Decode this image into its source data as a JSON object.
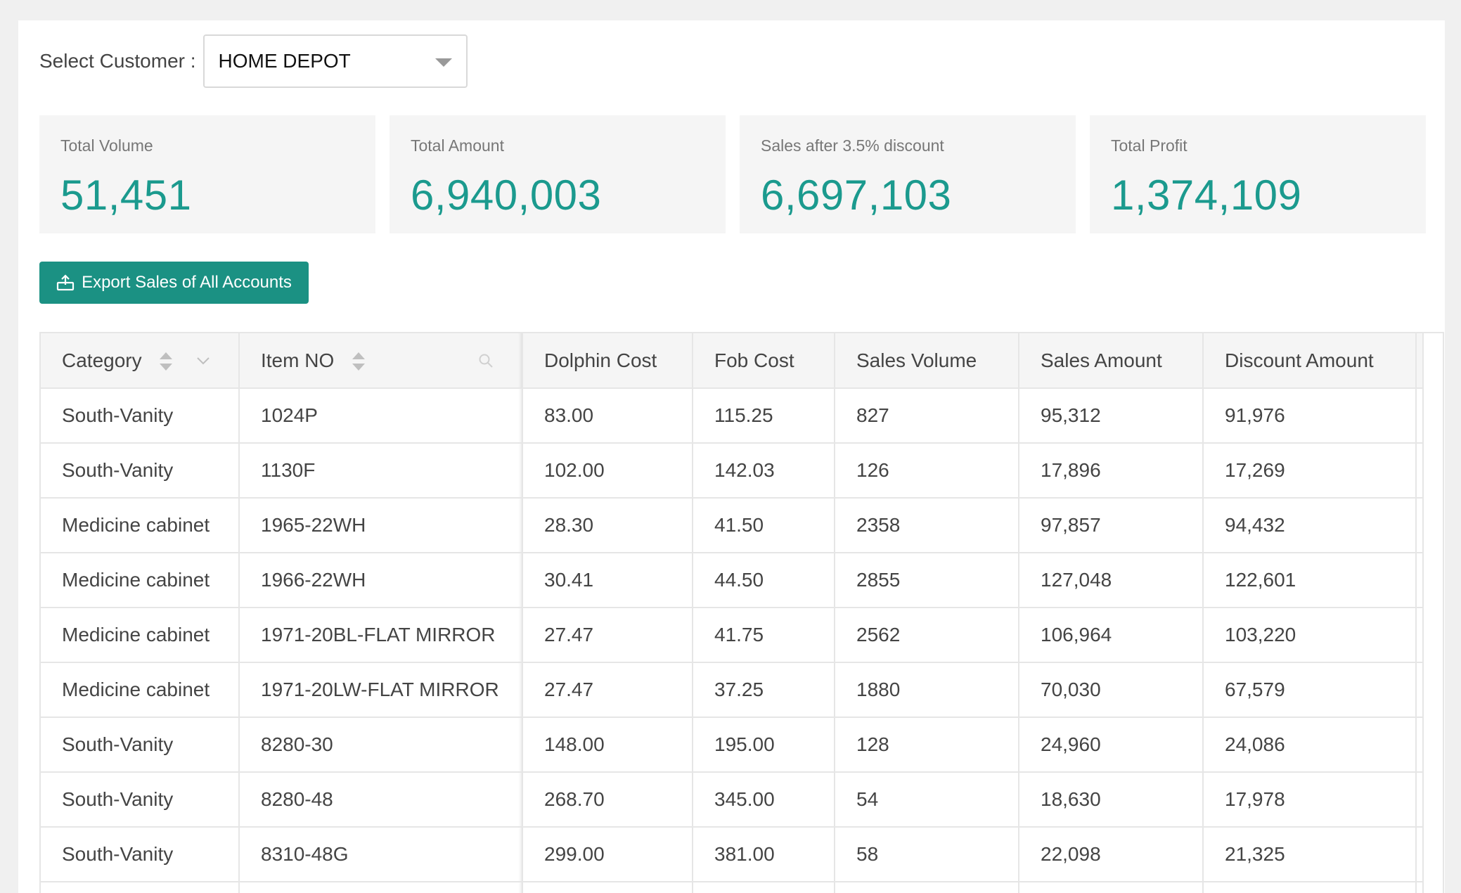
{
  "customer": {
    "label": "Select Customer :",
    "selected": "HOME DEPOT"
  },
  "stats": [
    {
      "title": "Total Volume",
      "value": "51,451"
    },
    {
      "title": "Total Amount",
      "value": "6,940,003"
    },
    {
      "title": "Sales after 3.5% discount",
      "value": "6,697,103"
    },
    {
      "title": "Total Profit",
      "value": "1,374,109"
    }
  ],
  "export_button": {
    "label": "Export Sales of All Accounts"
  },
  "table": {
    "headers": [
      "Category",
      "Item NO",
      "Dolphin Cost",
      "Fob Cost",
      "Sales Volume",
      "Sales Amount",
      "Discount Amount"
    ],
    "rows": [
      [
        "South-Vanity",
        "1024P",
        "83.00",
        "115.25",
        "827",
        "95,312",
        "91,976"
      ],
      [
        "South-Vanity",
        "1130F",
        "102.00",
        "142.03",
        "126",
        "17,896",
        "17,269"
      ],
      [
        "Medicine cabinet",
        "1965-22WH",
        "28.30",
        "41.50",
        "2358",
        "97,857",
        "94,432"
      ],
      [
        "Medicine cabinet",
        "1966-22WH",
        "30.41",
        "44.50",
        "2855",
        "127,048",
        "122,601"
      ],
      [
        "Medicine cabinet",
        "1971-20BL-FLAT MIRROR",
        "27.47",
        "41.75",
        "2562",
        "106,964",
        "103,220"
      ],
      [
        "Medicine cabinet",
        "1971-20LW-FLAT MIRROR",
        "27.47",
        "37.25",
        "1880",
        "70,030",
        "67,579"
      ],
      [
        "South-Vanity",
        "8280-30",
        "148.00",
        "195.00",
        "128",
        "24,960",
        "24,086"
      ],
      [
        "South-Vanity",
        "8280-48",
        "268.70",
        "345.00",
        "54",
        "18,630",
        "17,978"
      ],
      [
        "South-Vanity",
        "8310-48G",
        "299.00",
        "381.00",
        "58",
        "22,098",
        "21,325"
      ],
      [
        "",
        "",
        "",
        "",
        "",
        "",
        ""
      ]
    ]
  },
  "colors": {
    "accent": "#1b9a8e",
    "button": "#1b9183"
  }
}
